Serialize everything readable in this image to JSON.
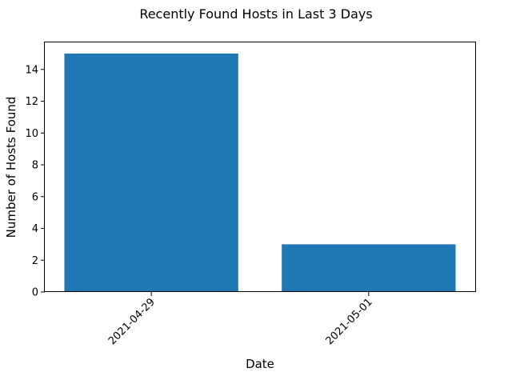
{
  "chart_data": {
    "type": "bar",
    "title": "Recently Found Hosts in Last 3 Days",
    "xlabel": "Date",
    "ylabel": "Number of Hosts Found",
    "categories": [
      "2021-04-29",
      "2021-05-01"
    ],
    "values": [
      15,
      3
    ],
    "ylim": [
      0,
      15.75
    ],
    "yticks": [
      0,
      2,
      4,
      6,
      8,
      10,
      12,
      14
    ],
    "grid": false,
    "bar_color": "#1f77b4",
    "xtick_rotation": 45
  }
}
